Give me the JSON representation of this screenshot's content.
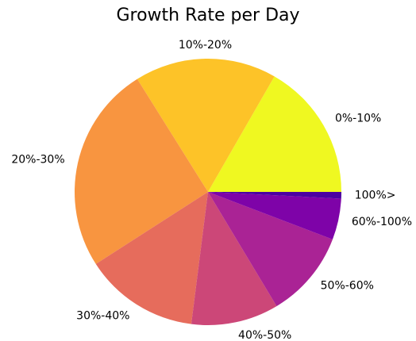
{
  "chart_data": {
    "type": "pie",
    "title": "Growth Rate per Day",
    "categories": [
      "0%-10%",
      "10%-20%",
      "20%-30%",
      "30%-40%",
      "40%-50%",
      "50%-60%",
      "60%-100%",
      "100%>"
    ],
    "values": [
      16.7,
      17.2,
      25.2,
      13.9,
      10.6,
      10.6,
      5.0,
      0.8
    ],
    "colors": [
      "#eff821",
      "#fdc328",
      "#f89540",
      "#e66c5c",
      "#cc4778",
      "#aa2395",
      "#7e03a8",
      "#4c02a1"
    ],
    "start_angle": 0,
    "counterclockwise": true
  }
}
